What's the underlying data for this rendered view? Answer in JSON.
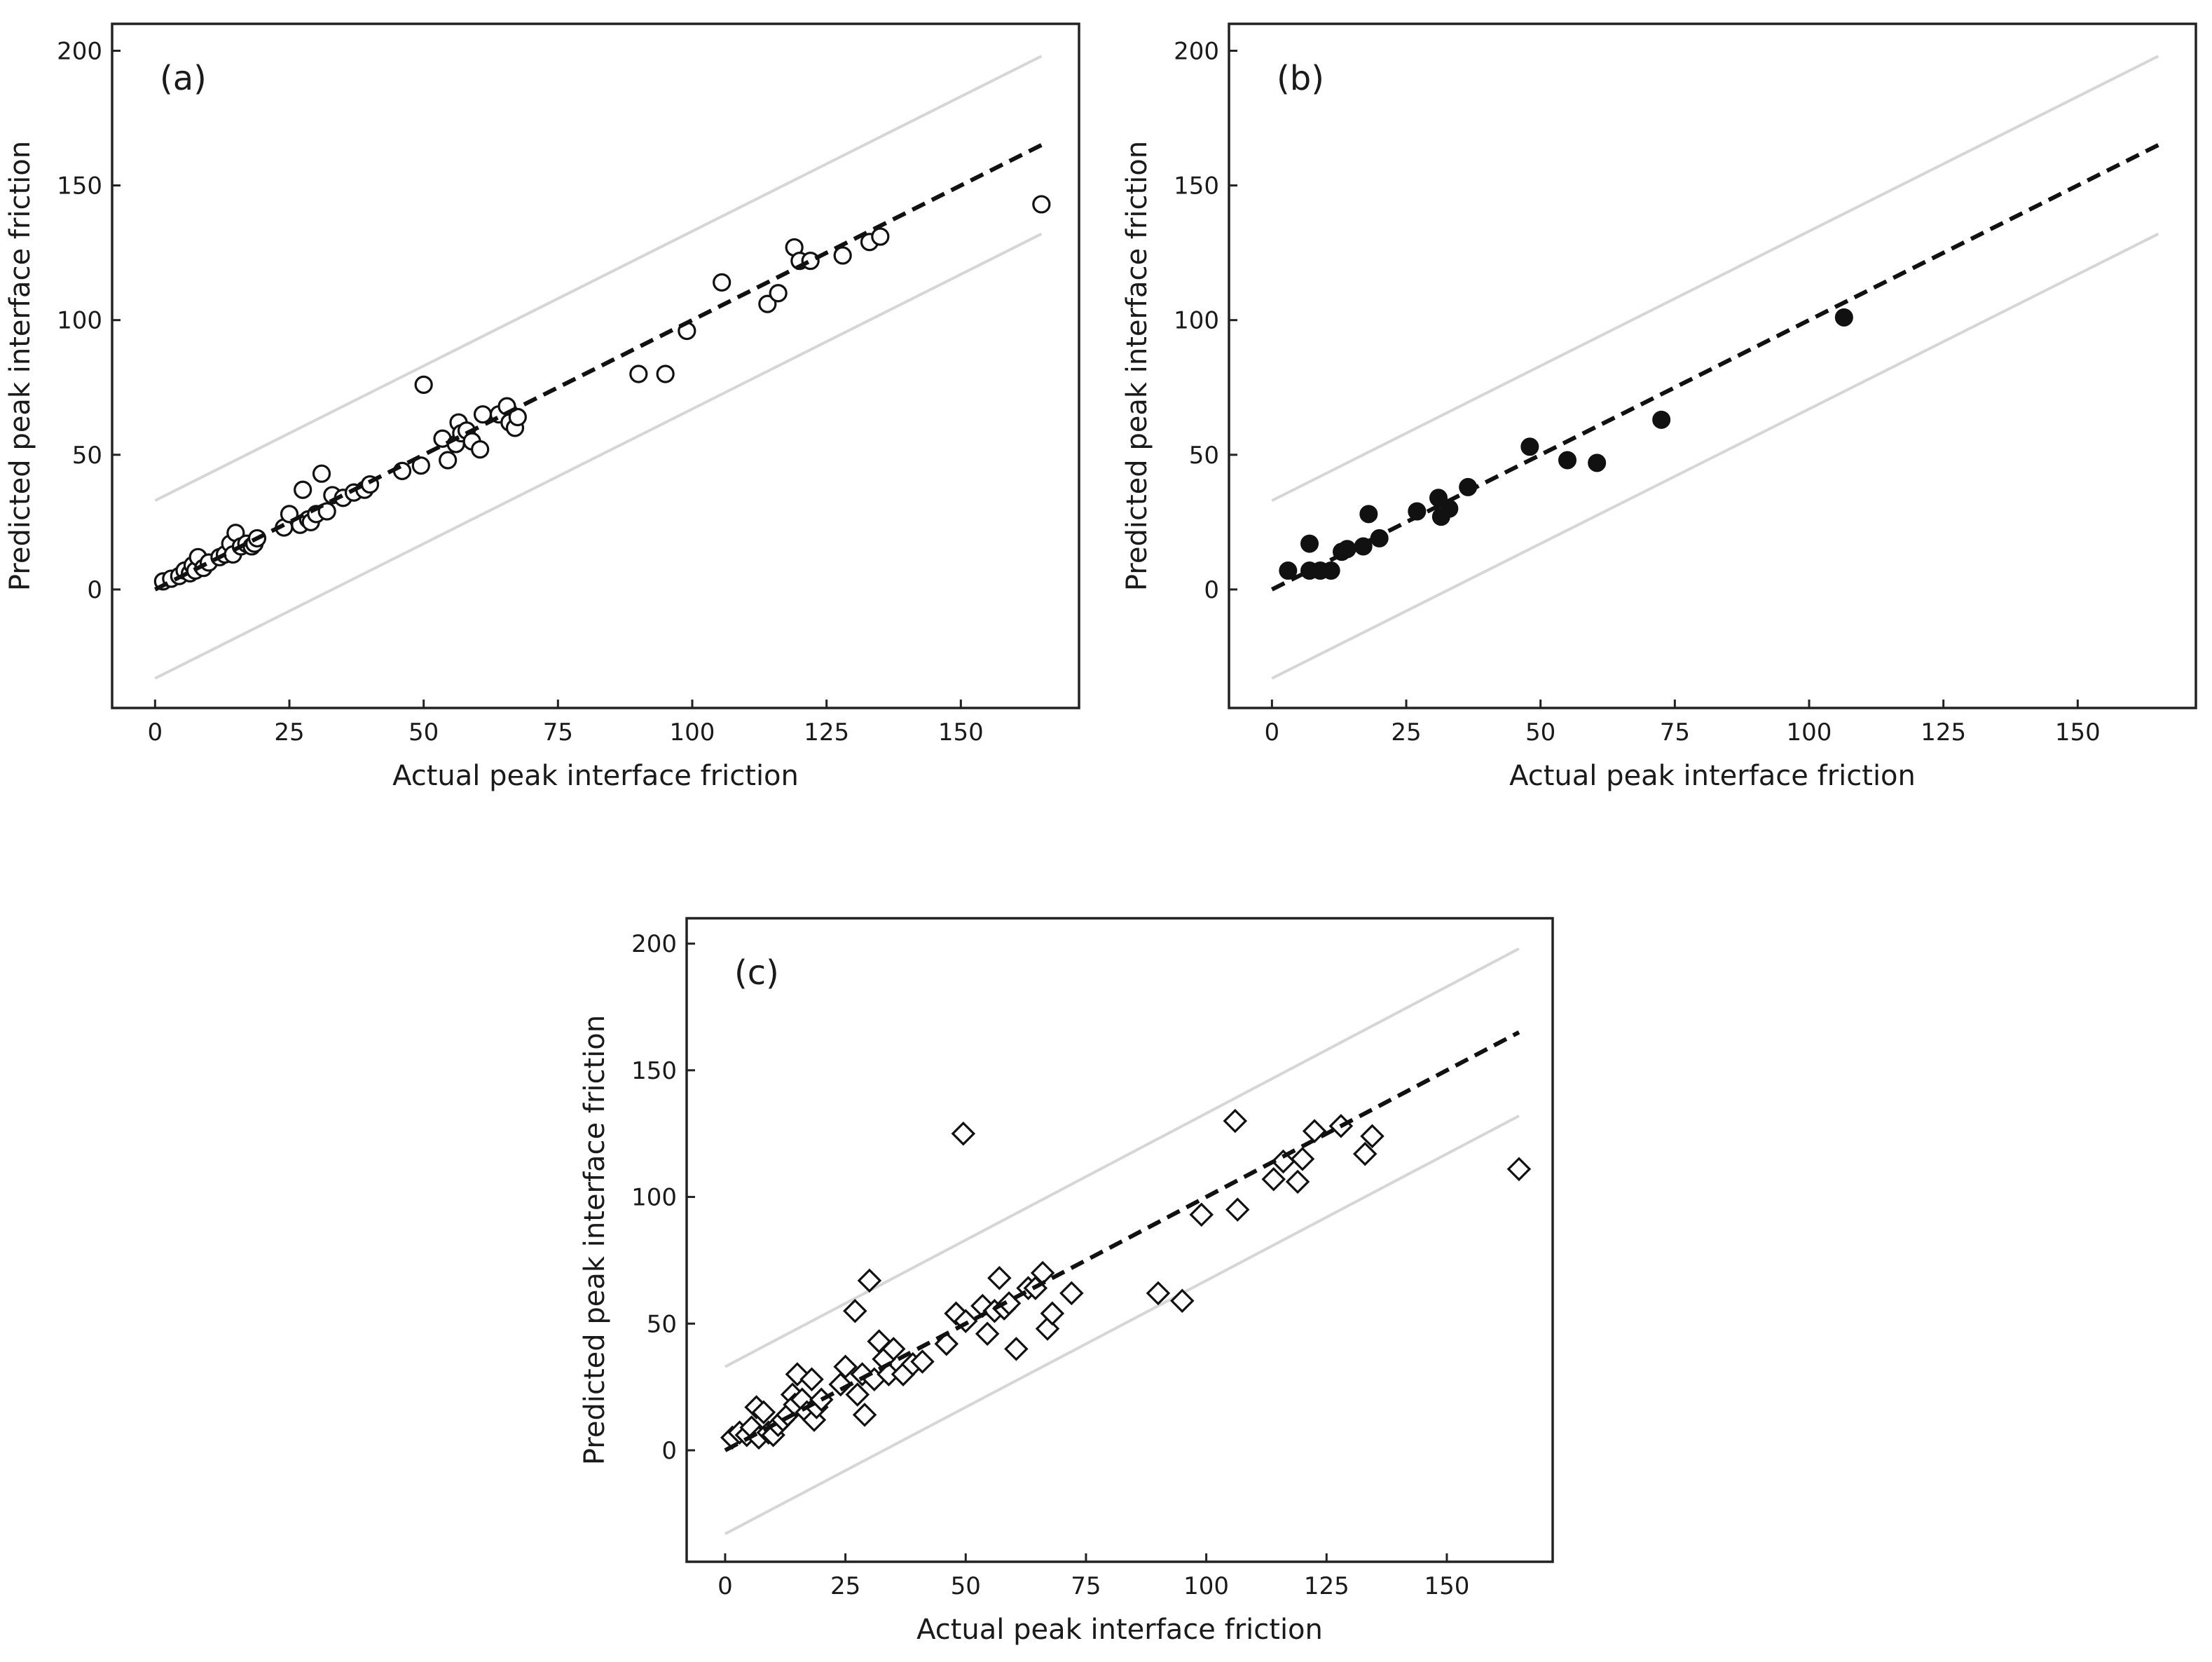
{
  "figure": {
    "x_ticks": [
      0,
      25,
      50,
      75,
      100,
      125,
      150
    ],
    "y_ticks": [
      0,
      50,
      100,
      150,
      200
    ],
    "xlim": [
      -8,
      172
    ],
    "ylim": [
      -44,
      210
    ],
    "identity_line": {
      "from": 0,
      "to": 165
    },
    "bound_offset": 33,
    "colors": {
      "frame": "#222222",
      "bound": "#d6d6d6",
      "dashed": "#111111",
      "marker_open": "#ffffff",
      "marker_filled": "#111111"
    }
  },
  "chart_data": [
    {
      "type": "scatter",
      "panel": "(a)",
      "xlabel": "Actual peak interface friction",
      "ylabel": "Predicted peak interface friction",
      "marker": "open-circle",
      "x": [
        1.5,
        3,
        4.5,
        5.5,
        6.5,
        7,
        7.5,
        8,
        9,
        10,
        12,
        13,
        14,
        14.5,
        15,
        16,
        17,
        18,
        18.5,
        19,
        24,
        25,
        27,
        27.5,
        28.5,
        29,
        30,
        31,
        32,
        33,
        35,
        37,
        39,
        40,
        46,
        49.5,
        50,
        53.5,
        54.5,
        56,
        56.5,
        57,
        58,
        59,
        60.5,
        61,
        64,
        65.5,
        66,
        67,
        67.5,
        90,
        95,
        99,
        105.5,
        114,
        116,
        119,
        120,
        122,
        128,
        133,
        135,
        165
      ],
      "y": [
        3,
        4,
        5,
        7,
        6,
        9,
        7,
        12,
        8,
        10,
        12,
        13,
        17,
        13,
        21,
        16,
        17,
        16,
        17,
        19,
        23,
        28,
        24,
        37,
        26,
        25,
        28,
        43,
        29,
        35,
        34,
        36,
        37,
        39,
        44,
        46,
        76,
        56,
        48,
        54,
        62,
        58,
        59,
        55,
        52,
        65,
        65,
        68,
        62,
        60,
        64,
        80,
        80,
        96,
        114,
        106,
        110,
        127,
        122,
        122,
        124,
        129,
        131,
        143
      ],
      "xlim": [
        -8,
        172
      ],
      "ylim": [
        -44,
        210
      ]
    },
    {
      "type": "scatter",
      "panel": "(b)",
      "xlabel": "Actual peak interface friction",
      "ylabel": "Predicted peak interface friction",
      "marker": "filled-circle",
      "x": [
        3,
        7,
        7,
        9,
        11,
        13,
        14,
        17,
        18,
        20,
        27,
        31,
        31.5,
        33,
        36.5,
        48,
        55,
        60.5,
        72.5,
        106.5
      ],
      "y": [
        7,
        17,
        7,
        7,
        7,
        14,
        15,
        16,
        28,
        19,
        29,
        34,
        27,
        30,
        38,
        53,
        48,
        47,
        63,
        101
      ],
      "xlim": [
        -8,
        172
      ],
      "ylim": [
        -44,
        210
      ]
    },
    {
      "type": "scatter",
      "panel": "(c)",
      "xlabel": "Actual peak interface friction",
      "ylabel": "Predicted peak interface friction",
      "marker": "open-diamond",
      "x": [
        1.5,
        3,
        4.5,
        5.5,
        6.5,
        7,
        8,
        9,
        10,
        11,
        12,
        13,
        14,
        14.5,
        15,
        16,
        17,
        18,
        18.5,
        19,
        20,
        24,
        25,
        27,
        27.5,
        28.5,
        29,
        30,
        31,
        32,
        33,
        34,
        35,
        37,
        39,
        41,
        46,
        48,
        49.5,
        50,
        53.5,
        54.5,
        56,
        57,
        58,
        59,
        60.5,
        63,
        64.5,
        66,
        67,
        68,
        72,
        90,
        95,
        99,
        106,
        106.5,
        114,
        116,
        119,
        120,
        122.5,
        128,
        133,
        134.5,
        165
      ],
      "y": [
        5,
        7,
        6,
        9,
        17,
        5,
        15,
        7,
        6,
        10,
        12,
        14,
        22,
        18,
        30,
        20,
        15,
        28,
        12,
        17,
        20,
        26,
        33,
        55,
        22,
        30,
        14,
        67,
        28,
        43,
        36,
        30,
        40,
        30,
        34,
        35,
        42,
        54,
        125,
        51,
        57,
        46,
        55,
        68,
        56,
        58,
        40,
        64,
        64,
        70,
        48,
        54,
        62,
        62,
        59,
        93,
        130,
        95,
        107,
        114,
        106,
        115,
        126,
        128,
        117,
        124,
        111
      ],
      "xlim": [
        -8,
        172
      ],
      "ylim": [
        -44,
        210
      ]
    }
  ]
}
